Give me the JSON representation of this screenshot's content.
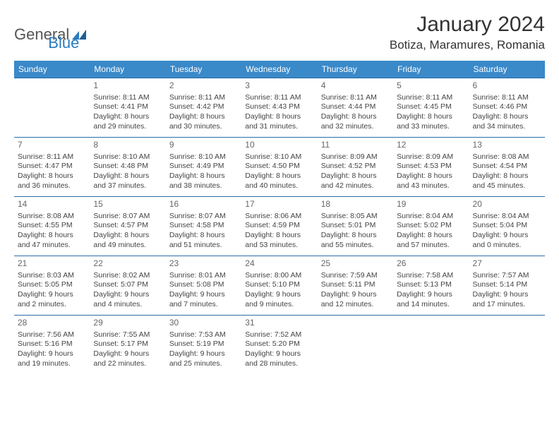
{
  "brand": {
    "general": "General",
    "blue": "Blue",
    "mark_color": "#2a7bbf"
  },
  "header": {
    "title": "January 2024",
    "location": "Botiza, Maramures, Romania"
  },
  "colors": {
    "header_bg": "#3a89c9",
    "header_text": "#ffffff",
    "row_border": "#2a6ea8",
    "body_text": "#444444",
    "daynum_text": "#666666",
    "page_bg": "#ffffff"
  },
  "calendar": {
    "day_headers": [
      "Sunday",
      "Monday",
      "Tuesday",
      "Wednesday",
      "Thursday",
      "Friday",
      "Saturday"
    ],
    "first_weekday_index": 1,
    "days": [
      {
        "n": 1,
        "sunrise": "8:11 AM",
        "sunset": "4:41 PM",
        "daylight": "8 hours and 29 minutes."
      },
      {
        "n": 2,
        "sunrise": "8:11 AM",
        "sunset": "4:42 PM",
        "daylight": "8 hours and 30 minutes."
      },
      {
        "n": 3,
        "sunrise": "8:11 AM",
        "sunset": "4:43 PM",
        "daylight": "8 hours and 31 minutes."
      },
      {
        "n": 4,
        "sunrise": "8:11 AM",
        "sunset": "4:44 PM",
        "daylight": "8 hours and 32 minutes."
      },
      {
        "n": 5,
        "sunrise": "8:11 AM",
        "sunset": "4:45 PM",
        "daylight": "8 hours and 33 minutes."
      },
      {
        "n": 6,
        "sunrise": "8:11 AM",
        "sunset": "4:46 PM",
        "daylight": "8 hours and 34 minutes."
      },
      {
        "n": 7,
        "sunrise": "8:11 AM",
        "sunset": "4:47 PM",
        "daylight": "8 hours and 36 minutes."
      },
      {
        "n": 8,
        "sunrise": "8:10 AM",
        "sunset": "4:48 PM",
        "daylight": "8 hours and 37 minutes."
      },
      {
        "n": 9,
        "sunrise": "8:10 AM",
        "sunset": "4:49 PM",
        "daylight": "8 hours and 38 minutes."
      },
      {
        "n": 10,
        "sunrise": "8:10 AM",
        "sunset": "4:50 PM",
        "daylight": "8 hours and 40 minutes."
      },
      {
        "n": 11,
        "sunrise": "8:09 AM",
        "sunset": "4:52 PM",
        "daylight": "8 hours and 42 minutes."
      },
      {
        "n": 12,
        "sunrise": "8:09 AM",
        "sunset": "4:53 PM",
        "daylight": "8 hours and 43 minutes."
      },
      {
        "n": 13,
        "sunrise": "8:08 AM",
        "sunset": "4:54 PM",
        "daylight": "8 hours and 45 minutes."
      },
      {
        "n": 14,
        "sunrise": "8:08 AM",
        "sunset": "4:55 PM",
        "daylight": "8 hours and 47 minutes."
      },
      {
        "n": 15,
        "sunrise": "8:07 AM",
        "sunset": "4:57 PM",
        "daylight": "8 hours and 49 minutes."
      },
      {
        "n": 16,
        "sunrise": "8:07 AM",
        "sunset": "4:58 PM",
        "daylight": "8 hours and 51 minutes."
      },
      {
        "n": 17,
        "sunrise": "8:06 AM",
        "sunset": "4:59 PM",
        "daylight": "8 hours and 53 minutes."
      },
      {
        "n": 18,
        "sunrise": "8:05 AM",
        "sunset": "5:01 PM",
        "daylight": "8 hours and 55 minutes."
      },
      {
        "n": 19,
        "sunrise": "8:04 AM",
        "sunset": "5:02 PM",
        "daylight": "8 hours and 57 minutes."
      },
      {
        "n": 20,
        "sunrise": "8:04 AM",
        "sunset": "5:04 PM",
        "daylight": "9 hours and 0 minutes."
      },
      {
        "n": 21,
        "sunrise": "8:03 AM",
        "sunset": "5:05 PM",
        "daylight": "9 hours and 2 minutes."
      },
      {
        "n": 22,
        "sunrise": "8:02 AM",
        "sunset": "5:07 PM",
        "daylight": "9 hours and 4 minutes."
      },
      {
        "n": 23,
        "sunrise": "8:01 AM",
        "sunset": "5:08 PM",
        "daylight": "9 hours and 7 minutes."
      },
      {
        "n": 24,
        "sunrise": "8:00 AM",
        "sunset": "5:10 PM",
        "daylight": "9 hours and 9 minutes."
      },
      {
        "n": 25,
        "sunrise": "7:59 AM",
        "sunset": "5:11 PM",
        "daylight": "9 hours and 12 minutes."
      },
      {
        "n": 26,
        "sunrise": "7:58 AM",
        "sunset": "5:13 PM",
        "daylight": "9 hours and 14 minutes."
      },
      {
        "n": 27,
        "sunrise": "7:57 AM",
        "sunset": "5:14 PM",
        "daylight": "9 hours and 17 minutes."
      },
      {
        "n": 28,
        "sunrise": "7:56 AM",
        "sunset": "5:16 PM",
        "daylight": "9 hours and 19 minutes."
      },
      {
        "n": 29,
        "sunrise": "7:55 AM",
        "sunset": "5:17 PM",
        "daylight": "9 hours and 22 minutes."
      },
      {
        "n": 30,
        "sunrise": "7:53 AM",
        "sunset": "5:19 PM",
        "daylight": "9 hours and 25 minutes."
      },
      {
        "n": 31,
        "sunrise": "7:52 AM",
        "sunset": "5:20 PM",
        "daylight": "9 hours and 28 minutes."
      }
    ],
    "labels": {
      "sunrise": "Sunrise:",
      "sunset": "Sunset:",
      "daylight": "Daylight:"
    }
  }
}
